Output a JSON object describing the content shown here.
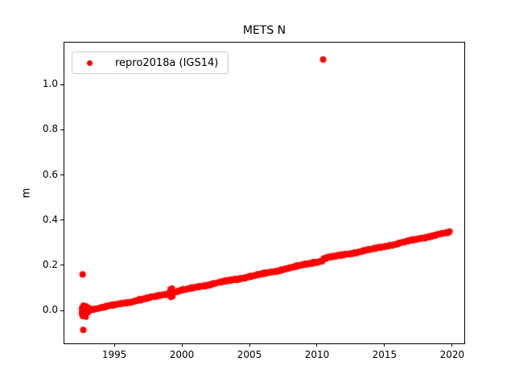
{
  "chart_data": {
    "type": "scatter",
    "title": "METS N",
    "xlabel": "",
    "ylabel": "m",
    "xlim": [
      1991.3,
      2020.9
    ],
    "ylim": [
      -0.145,
      1.185
    ],
    "xticks": [
      1995,
      2000,
      2005,
      2010,
      2015,
      2020
    ],
    "xtick_labels": [
      "1995",
      "2000",
      "2005",
      "2010",
      "2015",
      "2020"
    ],
    "yticks": [
      0.0,
      0.2,
      0.4,
      0.6,
      0.8,
      1.0
    ],
    "ytick_labels": [
      "0.0",
      "0.2",
      "0.4",
      "0.6",
      "0.8",
      "1.0"
    ],
    "grid": false,
    "legend_position": "upper left",
    "series": [
      {
        "name": "repro2018a (IGS14)",
        "color": "#ff0000",
        "marker": "dot",
        "trend": {
          "start_year": 1992.55,
          "end_year": 2019.85,
          "start_value": -0.005,
          "end_value": 0.338,
          "slope_m_per_year": 0.0126
        },
        "noise_sigma_m": 0.0022,
        "early_cluster": {
          "from_year": 1992.55,
          "to_year": 1993.4,
          "sigma_m": 0.016,
          "value_range": [
            -0.055,
            0.045
          ]
        },
        "step": {
          "year": 2010.45,
          "offset_m": 0.008
        },
        "bumps": [
          {
            "year": 1999.2,
            "half_width_years": 0.15,
            "extra_sigma_m": 0.01
          }
        ],
        "outliers": [
          [
            1992.65,
            0.16
          ],
          [
            1992.7,
            -0.085
          ],
          [
            2010.45,
            1.11
          ]
        ],
        "trend_points_yearly": {
          "years": [
            1993,
            1994,
            1995,
            1996,
            1997,
            1998,
            1999,
            2000,
            2001,
            2002,
            2003,
            2004,
            2005,
            2006,
            2007,
            2008,
            2009,
            2010,
            2011,
            2012,
            2013,
            2014,
            2015,
            2016,
            2017,
            2018,
            2019
          ],
          "values": [
            0.001,
            0.013,
            0.026,
            0.038,
            0.051,
            0.064,
            0.076,
            0.089,
            0.101,
            0.114,
            0.126,
            0.139,
            0.152,
            0.164,
            0.177,
            0.189,
            0.202,
            0.214,
            0.235,
            0.247,
            0.26,
            0.272,
            0.285,
            0.298,
            0.31,
            0.323,
            0.335
          ]
        }
      }
    ]
  }
}
